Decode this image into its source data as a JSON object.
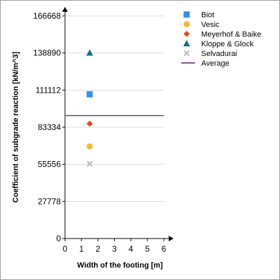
{
  "chart_data": {
    "type": "scatter",
    "xlabel": "Width of the footing [m]",
    "ylabel": "Coefficient of subgrade reaction [kN/m^3]",
    "xlim": [
      0,
      6
    ],
    "ylim": [
      0,
      166668
    ],
    "x_ticks": [
      "0",
      "1",
      "2",
      "3",
      "4",
      "5",
      "6"
    ],
    "y_ticks": [
      "0",
      "27778",
      "55556",
      "83334",
      "111112",
      "138890",
      "166668"
    ],
    "grid": "y",
    "legend_position": "top-right",
    "series": [
      {
        "name": "Biot",
        "marker": "square",
        "color": "#3c8ce6",
        "points": [
          [
            1.5,
            108000
          ]
        ]
      },
      {
        "name": "Vesic",
        "marker": "circle",
        "color": "#f5b83d",
        "points": [
          [
            1.5,
            69000
          ]
        ]
      },
      {
        "name": "Meyerhof & Baike",
        "marker": "diamond",
        "color": "#dd4a1c",
        "points": [
          [
            1.5,
            86000
          ]
        ]
      },
      {
        "name": "Kloppe & Glock",
        "marker": "triangle",
        "color": "#1a6b8a",
        "points": [
          [
            1.5,
            139000
          ]
        ]
      },
      {
        "name": "Selvadurai",
        "marker": "cross",
        "color": "#bdbdbd",
        "points": [
          [
            1.5,
            56000
          ]
        ]
      }
    ],
    "average": {
      "name": "Average",
      "value": 92000,
      "color": "#5a1a6e"
    }
  }
}
